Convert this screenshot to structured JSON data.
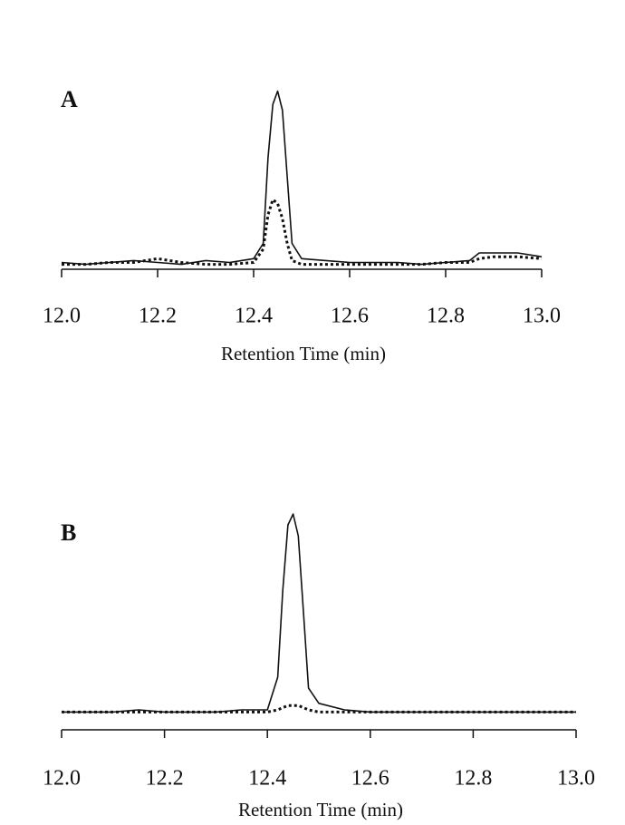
{
  "chart_data": [
    {
      "type": "line",
      "label": "A",
      "x_label": "Retention Time (min)",
      "x": [
        12.0,
        12.05,
        12.1,
        12.15,
        12.2,
        12.25,
        12.3,
        12.35,
        12.4,
        12.42,
        12.43,
        12.44,
        12.45,
        12.46,
        12.47,
        12.48,
        12.5,
        12.55,
        12.6,
        12.65,
        12.7,
        12.75,
        12.8,
        12.85,
        12.87,
        12.9,
        12.95,
        13.0
      ],
      "series": [
        {
          "color": "#111111",
          "style": "solid",
          "values": [
            5,
            4,
            5,
            6,
            5,
            4,
            6,
            5,
            7,
            15,
            60,
            88,
            95,
            85,
            50,
            15,
            7,
            6,
            5,
            5,
            5,
            4,
            5,
            6,
            10,
            10,
            10,
            8
          ]
        },
        {
          "color": "#111111",
          "style": "dotted",
          "values": [
            4,
            4,
            5,
            5,
            7,
            5,
            4,
            4,
            5,
            12,
            30,
            38,
            36,
            28,
            15,
            6,
            4,
            4,
            4,
            4,
            4,
            4,
            5,
            5,
            7,
            8,
            8,
            7
          ]
        }
      ],
      "xlim": [
        12.0,
        13.0
      ],
      "ylim": [
        0,
        100
      ],
      "xticks": [
        {
          "value": 12,
          "label": "12.0"
        },
        12.2,
        12.4,
        12.6,
        12.8,
        {
          "value": 13,
          "label": "13.0"
        }
      ]
    },
    {
      "type": "line",
      "label": "B",
      "x_label": "Retention Time (min)",
      "x": [
        12.0,
        12.05,
        12.1,
        12.15,
        12.2,
        12.25,
        12.3,
        12.35,
        12.4,
        12.42,
        12.43,
        12.44,
        12.45,
        12.46,
        12.47,
        12.48,
        12.5,
        12.55,
        12.6,
        12.65,
        12.7,
        12.75,
        12.8,
        12.85,
        12.87,
        12.9,
        12.95,
        13.0
      ],
      "series": [
        {
          "color": "#111111",
          "style": "solid",
          "values": [
            4,
            4,
            4,
            5,
            4,
            4,
            4,
            5,
            5,
            20,
            60,
            90,
            95,
            85,
            50,
            15,
            8,
            5,
            4,
            4,
            4,
            4,
            4,
            4,
            4,
            4,
            4,
            4
          ]
        },
        {
          "color": "#111111",
          "style": "dotted",
          "values": [
            4,
            4,
            4,
            4,
            4,
            4,
            4,
            4,
            4,
            5,
            6,
            7,
            7,
            7,
            6,
            5,
            4,
            4,
            4,
            4,
            4,
            4,
            4,
            4,
            4,
            4,
            4,
            4
          ]
        }
      ],
      "xlim": [
        12.0,
        13.0
      ],
      "ylim": [
        0,
        100
      ],
      "xticks": [
        {
          "value": 12,
          "label": "12.0"
        },
        12.2,
        12.4,
        12.6,
        12.8,
        {
          "value": 13,
          "label": "13.0"
        }
      ]
    }
  ]
}
